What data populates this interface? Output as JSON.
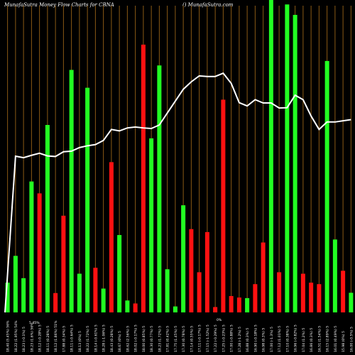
{
  "header": {
    "title": "MunafaSutra  Money Flow  Charts for CBNA",
    "site": "() MunafaSutra.com"
  },
  "chart_data": {
    "type": "bar",
    "grid": true,
    "colors": {
      "up": "#22ff22",
      "down": "#ff1111",
      "grid": "#8a5a14",
      "line": "#ffffff",
      "background": "#000000"
    },
    "annotations": [
      "5.45%",
      "0%"
    ],
    "categories": [
      "Fri 17 Feb 2023",
      "Thu 16 Feb 2023",
      "Wed 15 Feb 2023",
      "Tue 14 Feb 2023",
      "Mon 13 Feb 2023",
      "Fri 10 Feb 2023",
      "Thu 09 Feb 2023",
      "Wed 08 Feb 2023",
      "Tue 07 Feb 2023",
      "Mon 06 Feb 2023",
      "Fri 03 Feb 2023",
      "Thu 02 Feb 2023",
      "Wed 01 Feb 2023",
      "Tue 31 Jan 2023",
      "Mon 30 Jan 2023",
      "Fri 27 Jan 2023",
      "Thu 26 Jan 2023",
      "Wed 25 Jan 2023",
      "Tue 24 Jan 2023",
      "Mon 23 Jan 2023",
      "Fri 20 Jan 2023",
      "Thu 19 Jan 2023",
      "Wed 18 Jan 2023",
      "Tue 17 Jan 2023",
      "Fri 13 Jan 2023",
      "Thu 12 Jan 2023",
      "Wed 11 Jan 2023",
      "Tue 10 Jan 2023",
      "Mon 09 Jan 2023",
      "Fri 06 Jan 2023",
      "Thu 05 Jan 2023",
      "Wed 04 Jan 2023",
      "Tue 03 Jan 2023",
      "Fri 30 Dec 2022",
      "Thu 29 Dec 2022",
      "Wed 28 Dec 2022",
      "Tue 27 Dec 2022",
      "Fri 23 Dec 2022",
      "Thu 22 Dec 2022",
      "Wed 21 Dec 2022",
      "Tue 20 Dec 2022",
      "Mon 19 Dec 2022",
      "Fri 16 Dec 2022",
      "Thu 15 Dec 2022"
    ],
    "tick_labels": [
      "18.40 (5.45%) 56%",
      "18.22 (1.95%) 54%",
      "18.23 (-0.1%) 5",
      "18.23 (1.6%) 56%",
      "18.12 (-0.28%) 5",
      "18.11 (0.28%) 5",
      "18.12 (1.86%) 51%",
      "17.88 (0.34%) 5",
      "18.11 (-0.64%) 5",
      "18.13 (0%) 5",
      "18.22 (1.72%) 5",
      "18.14 (-0.61%) 5",
      "18.28 (-1.06%) 5",
      "18.43 (0.28%) 5",
      "18.67 (0%) 5",
      "18.62 (2.56%) 5",
      "18.02 (-0.17%) 5",
      "18.00 (0.85%) 5",
      "18.30 (0.77%) 5",
      "18.23 (1.72%) 5",
      "17.81 (0.42%) 5",
      "17.75 (1.45%) 5",
      "17.30 (0.78%) 5",
      "17.14 (0.55%) 5",
      "17.11 (-0.17%) 5",
      "17.15 (-1.52%) 5",
      "17.22 (-0.29%) 5",
      "17.25 (-0.23%) 5",
      "17.00 (-0.88%) 5",
      "17.28 (-1.2%) 5",
      "16.88 (0.3%) 5",
      "16.90 (-0.18%) 5",
      "16.98 (0.3%) 5",
      "17.00 (-1.3%) 5",
      "17.12 (1.01%) 5",
      "17.10 (0.38%) 5",
      "16.96 (-0.82%) 5",
      "17.04 (1.2%) 5",
      "16.86 (0.3%) 5",
      "16.51 (1.54%) 5",
      "16.15 (2.89%) 5",
      "16.01 (0.49%) 5",
      "15.98 (0%) 5",
      "16.00 (-0.5%) 5"
    ],
    "bar_directions": [
      "up",
      "up",
      "up",
      "up",
      "down",
      "up",
      "down",
      "down",
      "up",
      "up",
      "up",
      "down",
      "up",
      "down",
      "up",
      "up",
      "down",
      "down",
      "up",
      "up",
      "up",
      "up",
      "up",
      "down",
      "down",
      "down",
      "down",
      "down",
      "down",
      "down",
      "up",
      "down",
      "down",
      "up",
      "down",
      "up",
      "up",
      "down",
      "down",
      "down",
      "up",
      "up",
      "down",
      "up"
    ],
    "bar_values": [
      10,
      19,
      11.5,
      44,
      40,
      63,
      6.5,
      32.5,
      81.5,
      13,
      75.5,
      15,
      8,
      50.5,
      26,
      4,
      3,
      90,
      58.5,
      83,
      14.5,
      2,
      36,
      28,
      13.5,
      27,
      1.8,
      71.5,
      5.5,
      5,
      4.8,
      9.5,
      23.5,
      107.5,
      13.5,
      103.5,
      100,
      13,
      10,
      9.5,
      84.5,
      24.5,
      14,
      6.6
    ],
    "line_values": [
      0,
      52.5,
      52,
      52.8,
      53.5,
      52.6,
      52.4,
      54,
      54.2,
      55.4,
      56,
      56.4,
      57.8,
      61.5,
      61,
      62,
      62.3,
      62,
      61.8,
      63,
      67,
      71,
      75,
      77.5,
      79.5,
      79.3,
      79.3,
      80.4,
      77,
      70.5,
      69.4,
      71.5,
      70.4,
      70.4,
      68.7,
      68.8,
      73,
      71.5,
      66,
      61.5,
      64,
      64,
      64.4,
      64.8
    ],
    "ylim": [
      0,
      105
    ]
  }
}
